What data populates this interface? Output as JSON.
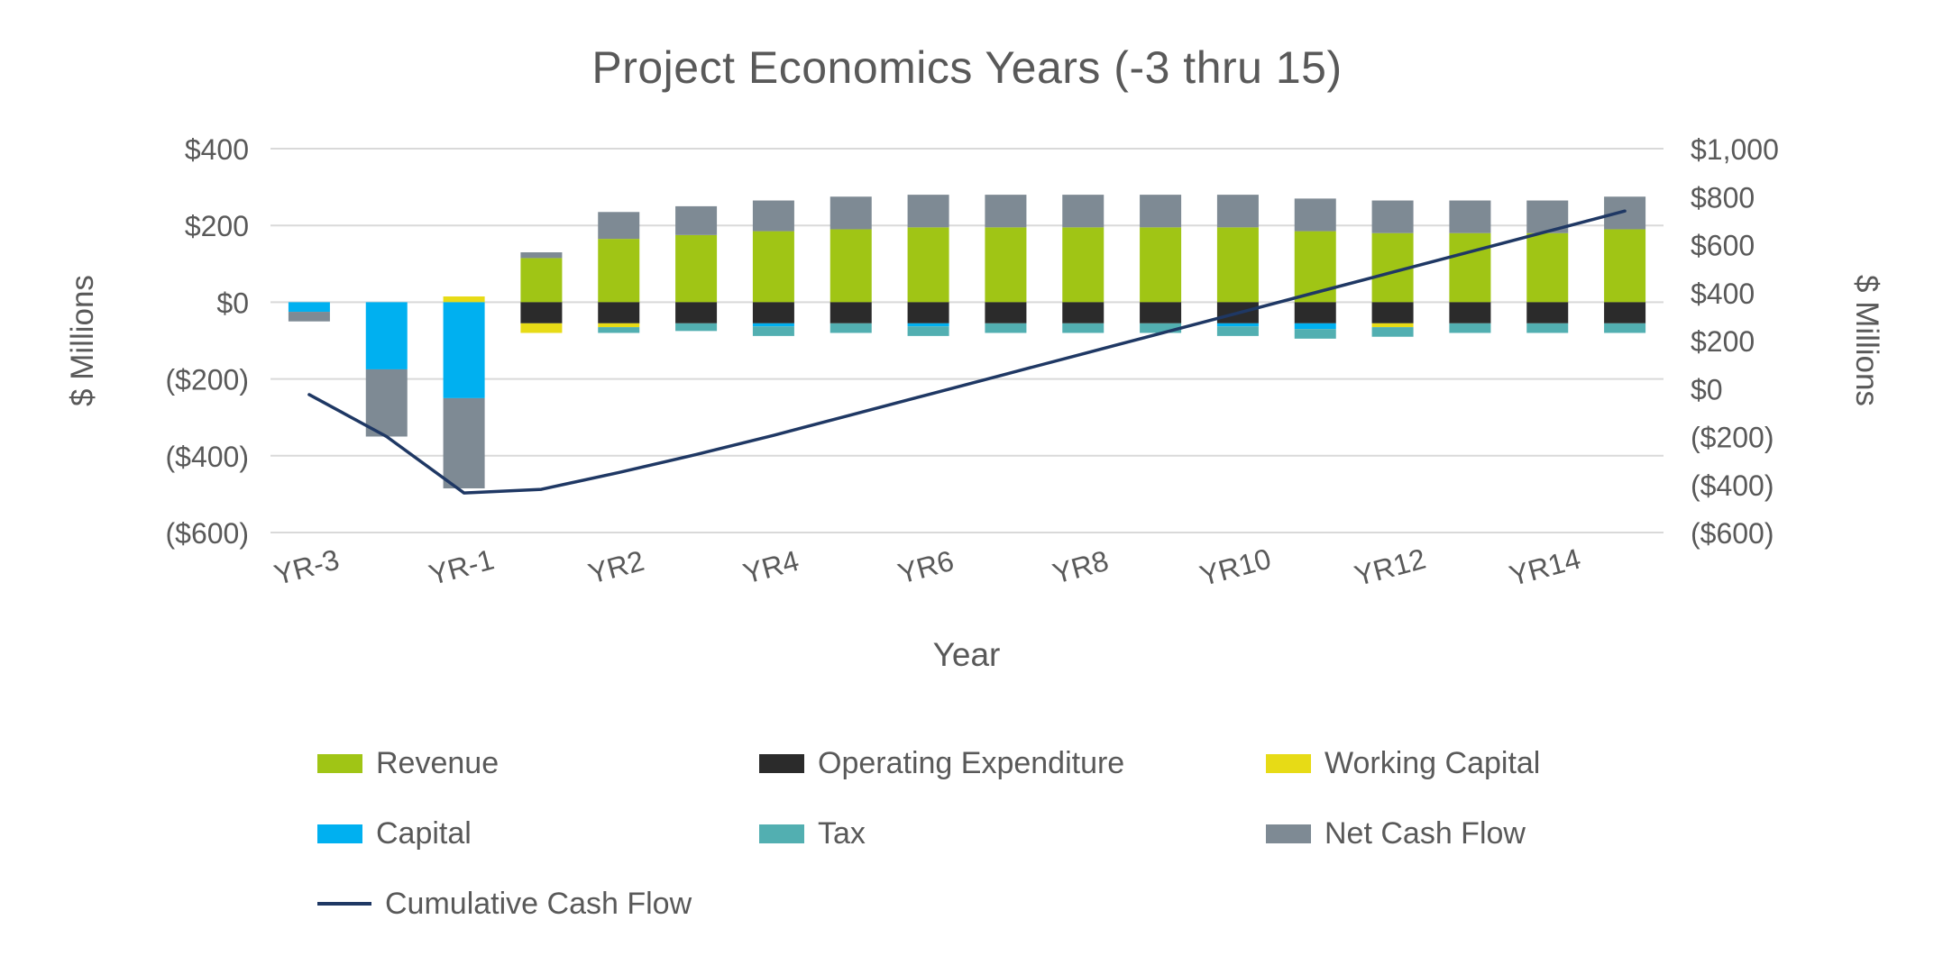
{
  "chart_data": {
    "type": "bar",
    "subtype": "stacked-bar-with-line-combo",
    "title": "Project Economics Years (-3 thru 15)",
    "xlabel": "Year",
    "ylabel_left": "$ Millions",
    "ylabel_right": "$ Millions",
    "grid": true,
    "legend_position": "bottom",
    "text_color": "#595959",
    "gridline_color": "#D9D9D9",
    "categories": [
      "YR-3",
      "YR-2",
      "YR-1",
      "YR1",
      "YR2",
      "YR3",
      "YR4",
      "YR5",
      "YR6",
      "YR7",
      "YR8",
      "YR9",
      "YR10",
      "YR11",
      "YR12",
      "YR13",
      "YR14",
      "YR15"
    ],
    "x_tick_labels_shown": [
      "YR-3",
      "YR-1",
      "YR2",
      "YR4",
      "YR6",
      "YR8",
      "YR10",
      "YR12",
      "YR14"
    ],
    "left_axis": {
      "min": -600,
      "max": 400,
      "step": 200,
      "tick_values": [
        400,
        200,
        0,
        -200,
        -400,
        -600
      ],
      "tick_labels": [
        "$400",
        "$200",
        "$0",
        "($200)",
        "($400)",
        "($600)"
      ]
    },
    "right_axis": {
      "min": -600,
      "max": 1000,
      "step": 200,
      "tick_values": [
        1000,
        800,
        600,
        400,
        200,
        0,
        -200,
        -400,
        -600
      ],
      "tick_labels": [
        "$1,000",
        "$800",
        "$600",
        "$400",
        "$200",
        "$0",
        "($200)",
        "($400)",
        "($600)"
      ]
    },
    "series": [
      {
        "name": "Revenue",
        "type": "bar",
        "color": "#A0C515",
        "values": [
          0,
          0,
          0,
          115,
          165,
          175,
          185,
          190,
          195,
          195,
          195,
          195,
          195,
          185,
          180,
          180,
          180,
          190
        ]
      },
      {
        "name": "Operating Expenditure",
        "type": "bar",
        "color": "#2B2B2B",
        "values": [
          0,
          0,
          0,
          -55,
          -55,
          -55,
          -55,
          -55,
          -55,
          -55,
          -55,
          -55,
          -55,
          -55,
          -55,
          -55,
          -55,
          -55
        ]
      },
      {
        "name": "Working Capital",
        "type": "bar",
        "color": "#E7DB16",
        "values": [
          0,
          0,
          15,
          -25,
          -10,
          0,
          0,
          0,
          0,
          0,
          0,
          0,
          0,
          0,
          -10,
          0,
          0,
          0
        ]
      },
      {
        "name": "Capital",
        "type": "bar",
        "color": "#00B0F0",
        "values": [
          -25,
          -175,
          -250,
          0,
          0,
          0,
          -8,
          0,
          -8,
          0,
          0,
          0,
          -8,
          -15,
          0,
          0,
          0,
          0
        ]
      },
      {
        "name": "Tax",
        "type": "bar",
        "color": "#52AFB1",
        "values": [
          0,
          0,
          0,
          0,
          -15,
          -20,
          -25,
          -25,
          -25,
          -25,
          -25,
          -25,
          -25,
          -25,
          -25,
          -25,
          -25,
          -25
        ]
      },
      {
        "name": "Net Cash Flow",
        "type": "bar",
        "color": "#7E8A94",
        "values": [
          -25,
          -175,
          -235,
          15,
          70,
          75,
          80,
          85,
          85,
          85,
          85,
          85,
          85,
          85,
          85,
          85,
          85,
          85
        ]
      },
      {
        "name": "Cumulative Cash Flow",
        "type": "line",
        "axis": "right",
        "color": "#1F3864",
        "values": [
          -25,
          -200,
          -435,
          -420,
          -350,
          -275,
          -195,
          -110,
          -25,
          60,
          145,
          230,
          315,
          400,
          485,
          570,
          655,
          740
        ]
      }
    ]
  }
}
